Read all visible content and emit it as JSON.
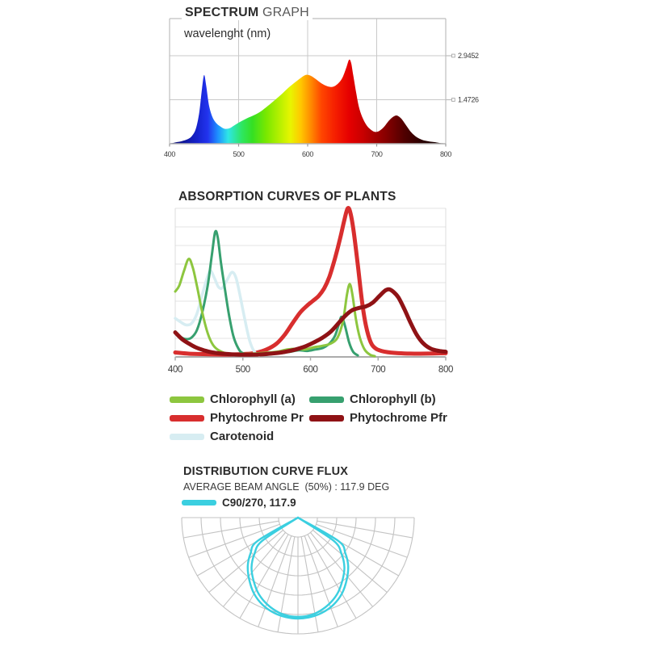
{
  "spectrum": {
    "title_bold": "SPECTRUM",
    "title_light": " GRAPH",
    "wavelength_label": "wavelenght (nm)"
  },
  "absorption": {
    "title": "ABSORPTION CURVES OF PLANTS",
    "legend": [
      {
        "label": "Chlorophyll (a)",
        "color": "#8dc63f"
      },
      {
        "label": "Chlorophyll (b)",
        "color": "#37a06f"
      },
      {
        "label": "Phytochrome Pr",
        "color": "#d82e2e"
      },
      {
        "label": "Phytochrome Pfr",
        "color": "#8f1215"
      },
      {
        "label": "Carotenoid",
        "color": "#d7edf2"
      }
    ]
  },
  "distribution": {
    "title": "DISTRIBUTION CURVE FLUX",
    "subtitle": "AVERAGE BEAM ANGLE  (50%) : 117.9 DEG",
    "legend_label": "C90/270, 117.9",
    "curve_color": "#3bcfe0"
  },
  "chart_data": [
    {
      "type": "area",
      "name": "led-spectrum",
      "xlabel": "wavelenght (nm)",
      "x_range": [
        400,
        800
      ],
      "x_ticks": [
        "400",
        "500",
        "600",
        "700",
        "800"
      ],
      "y_gridlines": [
        {
          "value": 2.9452,
          "label": "2.9452"
        },
        {
          "value": 1.4726,
          "label": "1.4726"
        }
      ],
      "ylim": [
        0,
        4.19
      ],
      "points": [
        [
          400,
          0.01
        ],
        [
          406,
          0.03
        ],
        [
          412,
          0.06
        ],
        [
          418,
          0.09
        ],
        [
          425,
          0.14
        ],
        [
          432,
          0.25
        ],
        [
          438,
          0.5
        ],
        [
          443,
          1.05
        ],
        [
          447,
          1.85
        ],
        [
          450,
          2.3
        ],
        [
          453,
          1.95
        ],
        [
          457,
          1.3
        ],
        [
          462,
          0.9
        ],
        [
          468,
          0.68
        ],
        [
          474,
          0.57
        ],
        [
          480,
          0.5
        ],
        [
          487,
          0.52
        ],
        [
          494,
          0.62
        ],
        [
          502,
          0.73
        ],
        [
          512,
          0.85
        ],
        [
          522,
          0.95
        ],
        [
          532,
          1.08
        ],
        [
          542,
          1.26
        ],
        [
          552,
          1.45
        ],
        [
          562,
          1.65
        ],
        [
          572,
          1.87
        ],
        [
          582,
          2.06
        ],
        [
          590,
          2.2
        ],
        [
          597,
          2.3
        ],
        [
          604,
          2.28
        ],
        [
          612,
          2.16
        ],
        [
          620,
          2.02
        ],
        [
          628,
          1.93
        ],
        [
          634,
          1.9
        ],
        [
          640,
          1.94
        ],
        [
          646,
          2.06
        ],
        [
          651,
          2.24
        ],
        [
          656,
          2.55
        ],
        [
          660,
          2.81
        ],
        [
          663,
          2.7
        ],
        [
          666,
          2.3
        ],
        [
          670,
          1.75
        ],
        [
          674,
          1.25
        ],
        [
          679,
          0.9
        ],
        [
          685,
          0.63
        ],
        [
          691,
          0.48
        ],
        [
          697,
          0.4
        ],
        [
          703,
          0.42
        ],
        [
          710,
          0.55
        ],
        [
          718,
          0.78
        ],
        [
          725,
          0.92
        ],
        [
          730,
          0.94
        ],
        [
          736,
          0.83
        ],
        [
          743,
          0.6
        ],
        [
          750,
          0.38
        ],
        [
          758,
          0.22
        ],
        [
          766,
          0.13
        ],
        [
          775,
          0.08
        ],
        [
          785,
          0.05
        ],
        [
          793,
          0.02
        ],
        [
          800,
          0.01
        ]
      ],
      "gradient": [
        {
          "nm": 400,
          "color": "#0a0a66"
        },
        {
          "nm": 440,
          "color": "#1522cc"
        },
        {
          "nm": 455,
          "color": "#2233ee"
        },
        {
          "nm": 470,
          "color": "#1e90ff"
        },
        {
          "nm": 485,
          "color": "#2ee6e6"
        },
        {
          "nm": 505,
          "color": "#2ee65e"
        },
        {
          "nm": 520,
          "color": "#35e023"
        },
        {
          "nm": 540,
          "color": "#7ae800"
        },
        {
          "nm": 560,
          "color": "#b8f000"
        },
        {
          "nm": 575,
          "color": "#e8f500"
        },
        {
          "nm": 590,
          "color": "#ffc800"
        },
        {
          "nm": 605,
          "color": "#ff8a00"
        },
        {
          "nm": 620,
          "color": "#ff4600"
        },
        {
          "nm": 640,
          "color": "#f51e00"
        },
        {
          "nm": 660,
          "color": "#e60000"
        },
        {
          "nm": 680,
          "color": "#c80000"
        },
        {
          "nm": 700,
          "color": "#a00000"
        },
        {
          "nm": 720,
          "color": "#7a0000"
        },
        {
          "nm": 740,
          "color": "#500000"
        },
        {
          "nm": 765,
          "color": "#2a0000"
        },
        {
          "nm": 800,
          "color": "#0d0000"
        }
      ]
    },
    {
      "type": "line",
      "name": "absorption-curves",
      "title": "ABSORPTION CURVES OF PLANTS",
      "x_range": [
        400,
        800
      ],
      "x_ticks": [
        "400",
        "500",
        "600",
        "700",
        "800"
      ],
      "y_range": [
        0,
        1
      ],
      "h_gridline_rows": 8,
      "series": [
        {
          "name": "Chlorophyll (a)",
          "color": "#8dc63f",
          "width": 3,
          "z": 3,
          "points": [
            [
              400,
              0.44
            ],
            [
              406,
              0.48
            ],
            [
              413,
              0.58
            ],
            [
              420,
              0.66
            ],
            [
              426,
              0.6
            ],
            [
              432,
              0.48
            ],
            [
              440,
              0.3
            ],
            [
              448,
              0.16
            ],
            [
              456,
              0.08
            ],
            [
              466,
              0.04
            ],
            [
              480,
              0.02
            ],
            [
              500,
              0.02
            ],
            [
              525,
              0.025
            ],
            [
              550,
              0.035
            ],
            [
              565,
              0.05
            ],
            [
              580,
              0.055
            ],
            [
              592,
              0.05
            ],
            [
              605,
              0.065
            ],
            [
              618,
              0.075
            ],
            [
              630,
              0.09
            ],
            [
              640,
              0.13
            ],
            [
              648,
              0.24
            ],
            [
              654,
              0.42
            ],
            [
              658,
              0.49
            ],
            [
              662,
              0.42
            ],
            [
              667,
              0.26
            ],
            [
              673,
              0.13
            ],
            [
              680,
              0.05
            ],
            [
              688,
              0.015
            ],
            [
              695,
              0.005
            ]
          ]
        },
        {
          "name": "Chlorophyll (b)",
          "color": "#37a06f",
          "width": 3,
          "z": 2,
          "points": [
            [
              400,
              0.17
            ],
            [
              408,
              0.135
            ],
            [
              416,
              0.12
            ],
            [
              424,
              0.13
            ],
            [
              432,
              0.18
            ],
            [
              440,
              0.3
            ],
            [
              448,
              0.48
            ],
            [
              454,
              0.68
            ],
            [
              459,
              0.84
            ],
            [
              463,
              0.8
            ],
            [
              468,
              0.62
            ],
            [
              474,
              0.44
            ],
            [
              480,
              0.27
            ],
            [
              486,
              0.14
            ],
            [
              493,
              0.06
            ],
            [
              500,
              0.025
            ],
            [
              515,
              0.015
            ],
            [
              535,
              0.015
            ],
            [
              555,
              0.025
            ],
            [
              570,
              0.035
            ],
            [
              583,
              0.045
            ],
            [
              595,
              0.04
            ],
            [
              607,
              0.05
            ],
            [
              618,
              0.06
            ],
            [
              628,
              0.09
            ],
            [
              636,
              0.14
            ],
            [
              642,
              0.22
            ],
            [
              646,
              0.27
            ],
            [
              651,
              0.21
            ],
            [
              657,
              0.1
            ],
            [
              663,
              0.035
            ],
            [
              670,
              0.01
            ]
          ]
        },
        {
          "name": "Phytochrome Pr",
          "color": "#d82e2e",
          "width": 5,
          "z": 0,
          "points": [
            [
              400,
              0.03
            ],
            [
              420,
              0.022
            ],
            [
              450,
              0.018
            ],
            [
              480,
              0.016
            ],
            [
              505,
              0.02
            ],
            [
              520,
              0.028
            ],
            [
              535,
              0.05
            ],
            [
              550,
              0.09
            ],
            [
              562,
              0.15
            ],
            [
              574,
              0.23
            ],
            [
              585,
              0.3
            ],
            [
              595,
              0.345
            ],
            [
              603,
              0.375
            ],
            [
              612,
              0.41
            ],
            [
              620,
              0.46
            ],
            [
              628,
              0.54
            ],
            [
              636,
              0.66
            ],
            [
              644,
              0.8
            ],
            [
              650,
              0.92
            ],
            [
              655,
              1.0
            ],
            [
              659,
              0.97
            ],
            [
              664,
              0.84
            ],
            [
              670,
              0.62
            ],
            [
              676,
              0.38
            ],
            [
              682,
              0.21
            ],
            [
              689,
              0.1
            ],
            [
              697,
              0.055
            ],
            [
              710,
              0.035
            ],
            [
              730,
              0.025
            ],
            [
              760,
              0.022
            ],
            [
              800,
              0.025
            ]
          ]
        },
        {
          "name": "Phytochrome Pfr",
          "color": "#8f1215",
          "width": 5,
          "z": 4,
          "points": [
            [
              400,
              0.165
            ],
            [
              410,
              0.12
            ],
            [
              420,
              0.09
            ],
            [
              430,
              0.065
            ],
            [
              442,
              0.045
            ],
            [
              455,
              0.03
            ],
            [
              470,
              0.022
            ],
            [
              490,
              0.016
            ],
            [
              510,
              0.015
            ],
            [
              530,
              0.018
            ],
            [
              548,
              0.025
            ],
            [
              563,
              0.035
            ],
            [
              578,
              0.05
            ],
            [
              592,
              0.07
            ],
            [
              606,
              0.1
            ],
            [
              618,
              0.13
            ],
            [
              630,
              0.17
            ],
            [
              642,
              0.23
            ],
            [
              652,
              0.28
            ],
            [
              662,
              0.315
            ],
            [
              672,
              0.33
            ],
            [
              682,
              0.34
            ],
            [
              692,
              0.365
            ],
            [
              702,
              0.41
            ],
            [
              710,
              0.445
            ],
            [
              716,
              0.455
            ],
            [
              722,
              0.44
            ],
            [
              730,
              0.4
            ],
            [
              739,
              0.32
            ],
            [
              748,
              0.23
            ],
            [
              757,
              0.15
            ],
            [
              767,
              0.09
            ],
            [
              778,
              0.055
            ],
            [
              790,
              0.04
            ],
            [
              800,
              0.035
            ]
          ]
        },
        {
          "name": "Carotenoid",
          "color": "#d7edf2",
          "width": 3.5,
          "z": 1,
          "points": [
            [
              400,
              0.26
            ],
            [
              408,
              0.235
            ],
            [
              416,
              0.215
            ],
            [
              424,
              0.225
            ],
            [
              432,
              0.29
            ],
            [
              440,
              0.42
            ],
            [
              447,
              0.53
            ],
            [
              452,
              0.58
            ],
            [
              458,
              0.53
            ],
            [
              464,
              0.47
            ],
            [
              470,
              0.465
            ],
            [
              477,
              0.52
            ],
            [
              484,
              0.57
            ],
            [
              490,
              0.53
            ],
            [
              496,
              0.41
            ],
            [
              503,
              0.25
            ],
            [
              510,
              0.11
            ],
            [
              517,
              0.035
            ],
            [
              524,
              0.01
            ]
          ]
        }
      ]
    },
    {
      "type": "polar",
      "name": "distribution-curve-flux",
      "planes": "C90/270",
      "beam_angle_deg": 117.9,
      "rings": 6,
      "ray_step_deg": 10,
      "span_deg": 180,
      "color": "#3bcfe0",
      "curves": [
        {
          "name": "C90",
          "points": [
            [
              60,
              0.0
            ],
            [
              60,
              0.4
            ],
            [
              53,
              0.51
            ],
            [
              46,
              0.6
            ],
            [
              38,
              0.68
            ],
            [
              30,
              0.755
            ],
            [
              22,
              0.81
            ],
            [
              14,
              0.845
            ],
            [
              7,
              0.862
            ],
            [
              0,
              0.868
            ]
          ]
        },
        {
          "name": "C270",
          "points": [
            [
              57,
              0.0
            ],
            [
              57,
              0.365
            ],
            [
              50,
              0.49
            ],
            [
              43,
              0.585
            ],
            [
              35,
              0.665
            ],
            [
              27,
              0.74
            ],
            [
              19,
              0.795
            ],
            [
              11,
              0.835
            ],
            [
              5,
              0.85
            ],
            [
              0,
              0.853
            ]
          ]
        }
      ]
    }
  ]
}
